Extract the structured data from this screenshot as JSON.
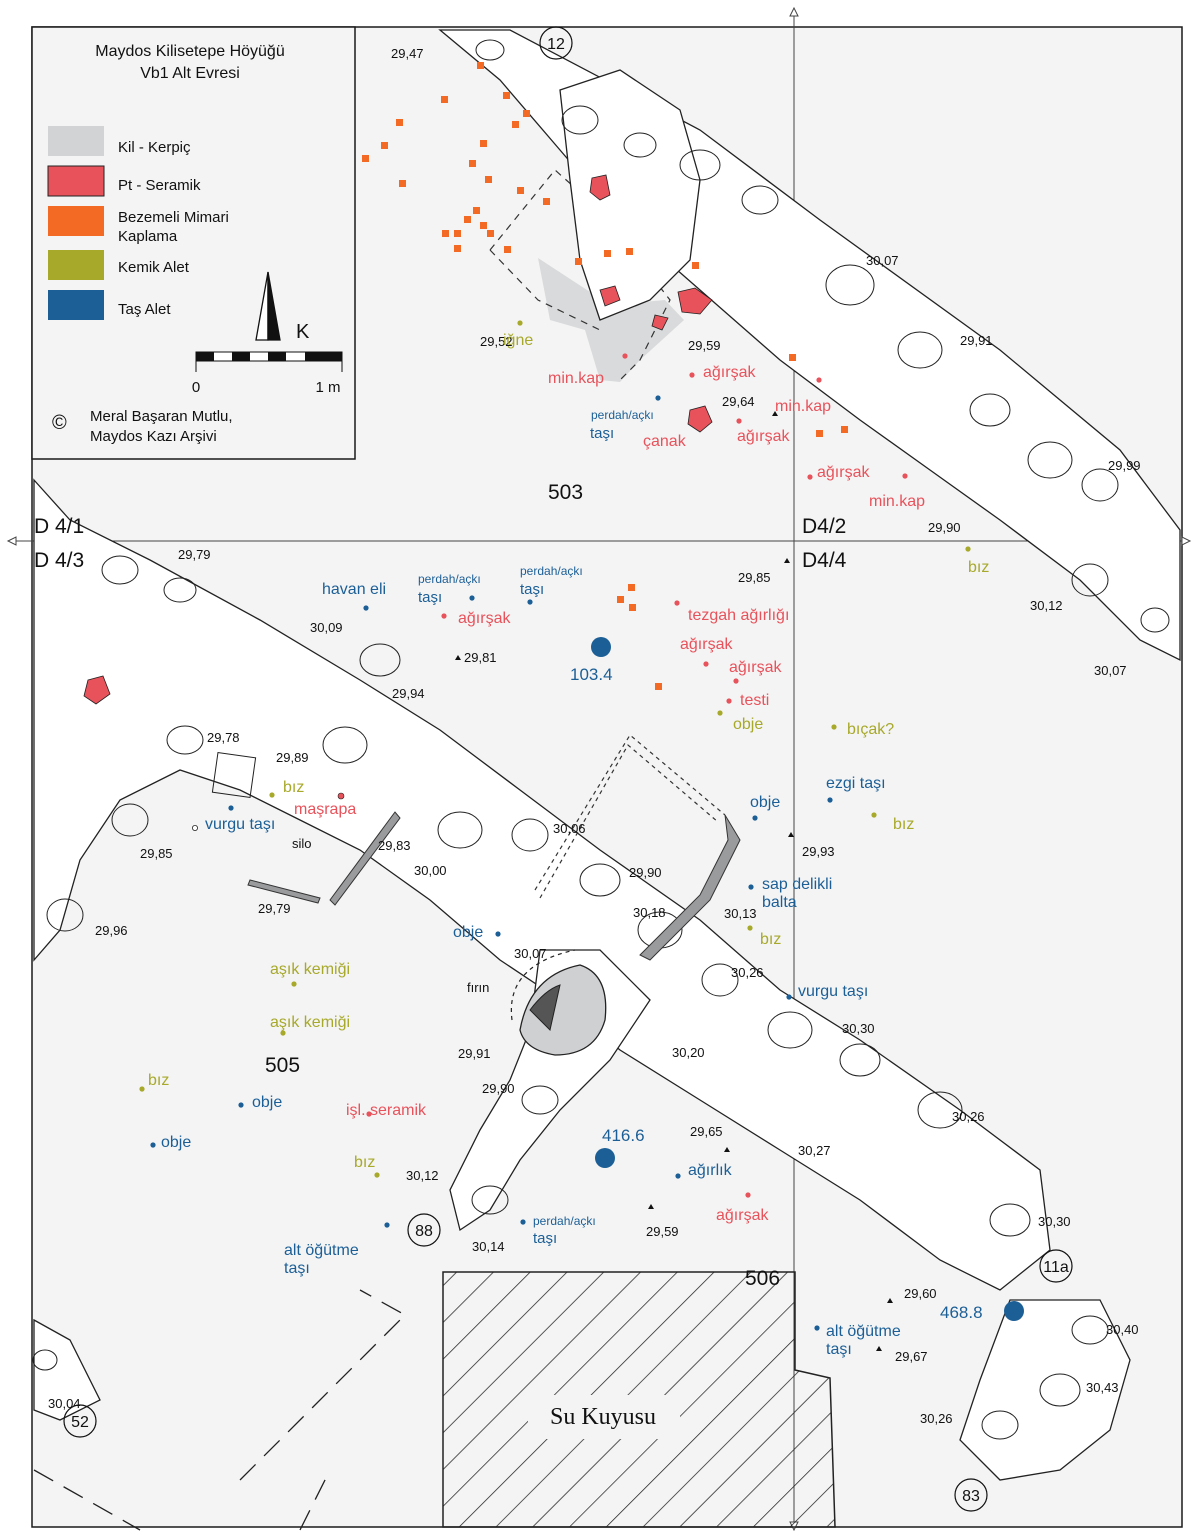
{
  "legend": {
    "title_line1": "Maydos Kilisetepe Höyüğü",
    "title_line2": "Vb1 Alt Evresi",
    "items": [
      {
        "label": "Kil - Kerpiç",
        "color": "#d2d3d5"
      },
      {
        "label": "Pt - Seramik",
        "color": "#e8525b"
      },
      {
        "label_line1": "Bezemeli Mimari",
        "label_line2": "Kaplama",
        "color": "#f26a24"
      },
      {
        "label": "Kemik Alet",
        "color": "#a7a92b"
      },
      {
        "label": "Taş Alet",
        "color": "#1c5f96"
      }
    ],
    "north_letter": "K",
    "scale_start": "0",
    "scale_end": "1 m",
    "copyright_symbol": "©",
    "credit_line1": "Meral Başaran Mutlu,",
    "credit_line2": "Maydos Kazı Arşivi"
  },
  "grid": {
    "nw": "D 4/1",
    "sw": "D 4/3",
    "ne": "D4/2",
    "se": "D4/4"
  },
  "rooms": [
    "503",
    "505",
    "506"
  ],
  "circled": [
    "12",
    "88",
    "11a",
    "52",
    "83"
  ],
  "well_label": "Su Kuyusu",
  "big_points": [
    "103.4",
    "416.6",
    "468.8"
  ],
  "elevations": [
    "29,47",
    "29,52",
    "29,59",
    "29,64",
    "30,07",
    "29,91",
    "29,99",
    "29,90",
    "30,12",
    "30,07",
    "29,85",
    "29,79",
    "30,09",
    "29,81",
    "29,94",
    "29,78",
    "29,89",
    "29,83",
    "29,85",
    "29,79",
    "29,96",
    "30,06",
    "30,00",
    "29,93",
    "29,90",
    "30,18",
    "30,13",
    "30,07",
    "30,26",
    "29,91",
    "30,20",
    "29,90",
    "30,30",
    "30,26",
    "29,65",
    "30,27",
    "30,12",
    "30,14",
    "29,59",
    "30,30",
    "29,60",
    "30,40",
    "29,67",
    "30,43",
    "30,26",
    "30,04"
  ],
  "finds": {
    "red": [
      "min.kap",
      "ağırşak",
      "min.kap",
      "çanak",
      "ağırşak",
      "ağırşak",
      "min.kap",
      "ağırşak",
      "tezgah ağırlığı",
      "ağırşak",
      "ağırşak",
      "testi",
      "maşrapa",
      "işl. seramik",
      "ağırşak"
    ],
    "olive": [
      "iğne",
      "bız",
      "obje",
      "bıçak?",
      "bız",
      "bız",
      "bız",
      "aşık kemiği",
      "aşık kemiği",
      "bız",
      "bız"
    ],
    "blue": [
      "perdah/açkı",
      "taşı",
      "havan eli",
      "perdah/açkı",
      "taşı",
      "perdah/açkı",
      "taşı",
      "obje",
      "ezgi taşı",
      "vurgu taşı",
      "sap delikli",
      "balta",
      "obje",
      "vurgu taşı",
      "obje",
      "obje",
      "ağırlık",
      "perdah/açkı",
      "taşı",
      "alt öğütme",
      "taşı",
      "alt öğütme",
      "taşı"
    ],
    "black": [
      "silo",
      "fırın"
    ]
  },
  "colors": {
    "red": "#e8525b",
    "orange": "#f26a24",
    "olive": "#a7a92b",
    "blue": "#1c5f96",
    "clay": "#d2d3d5",
    "ground": "#f4f4f4"
  }
}
